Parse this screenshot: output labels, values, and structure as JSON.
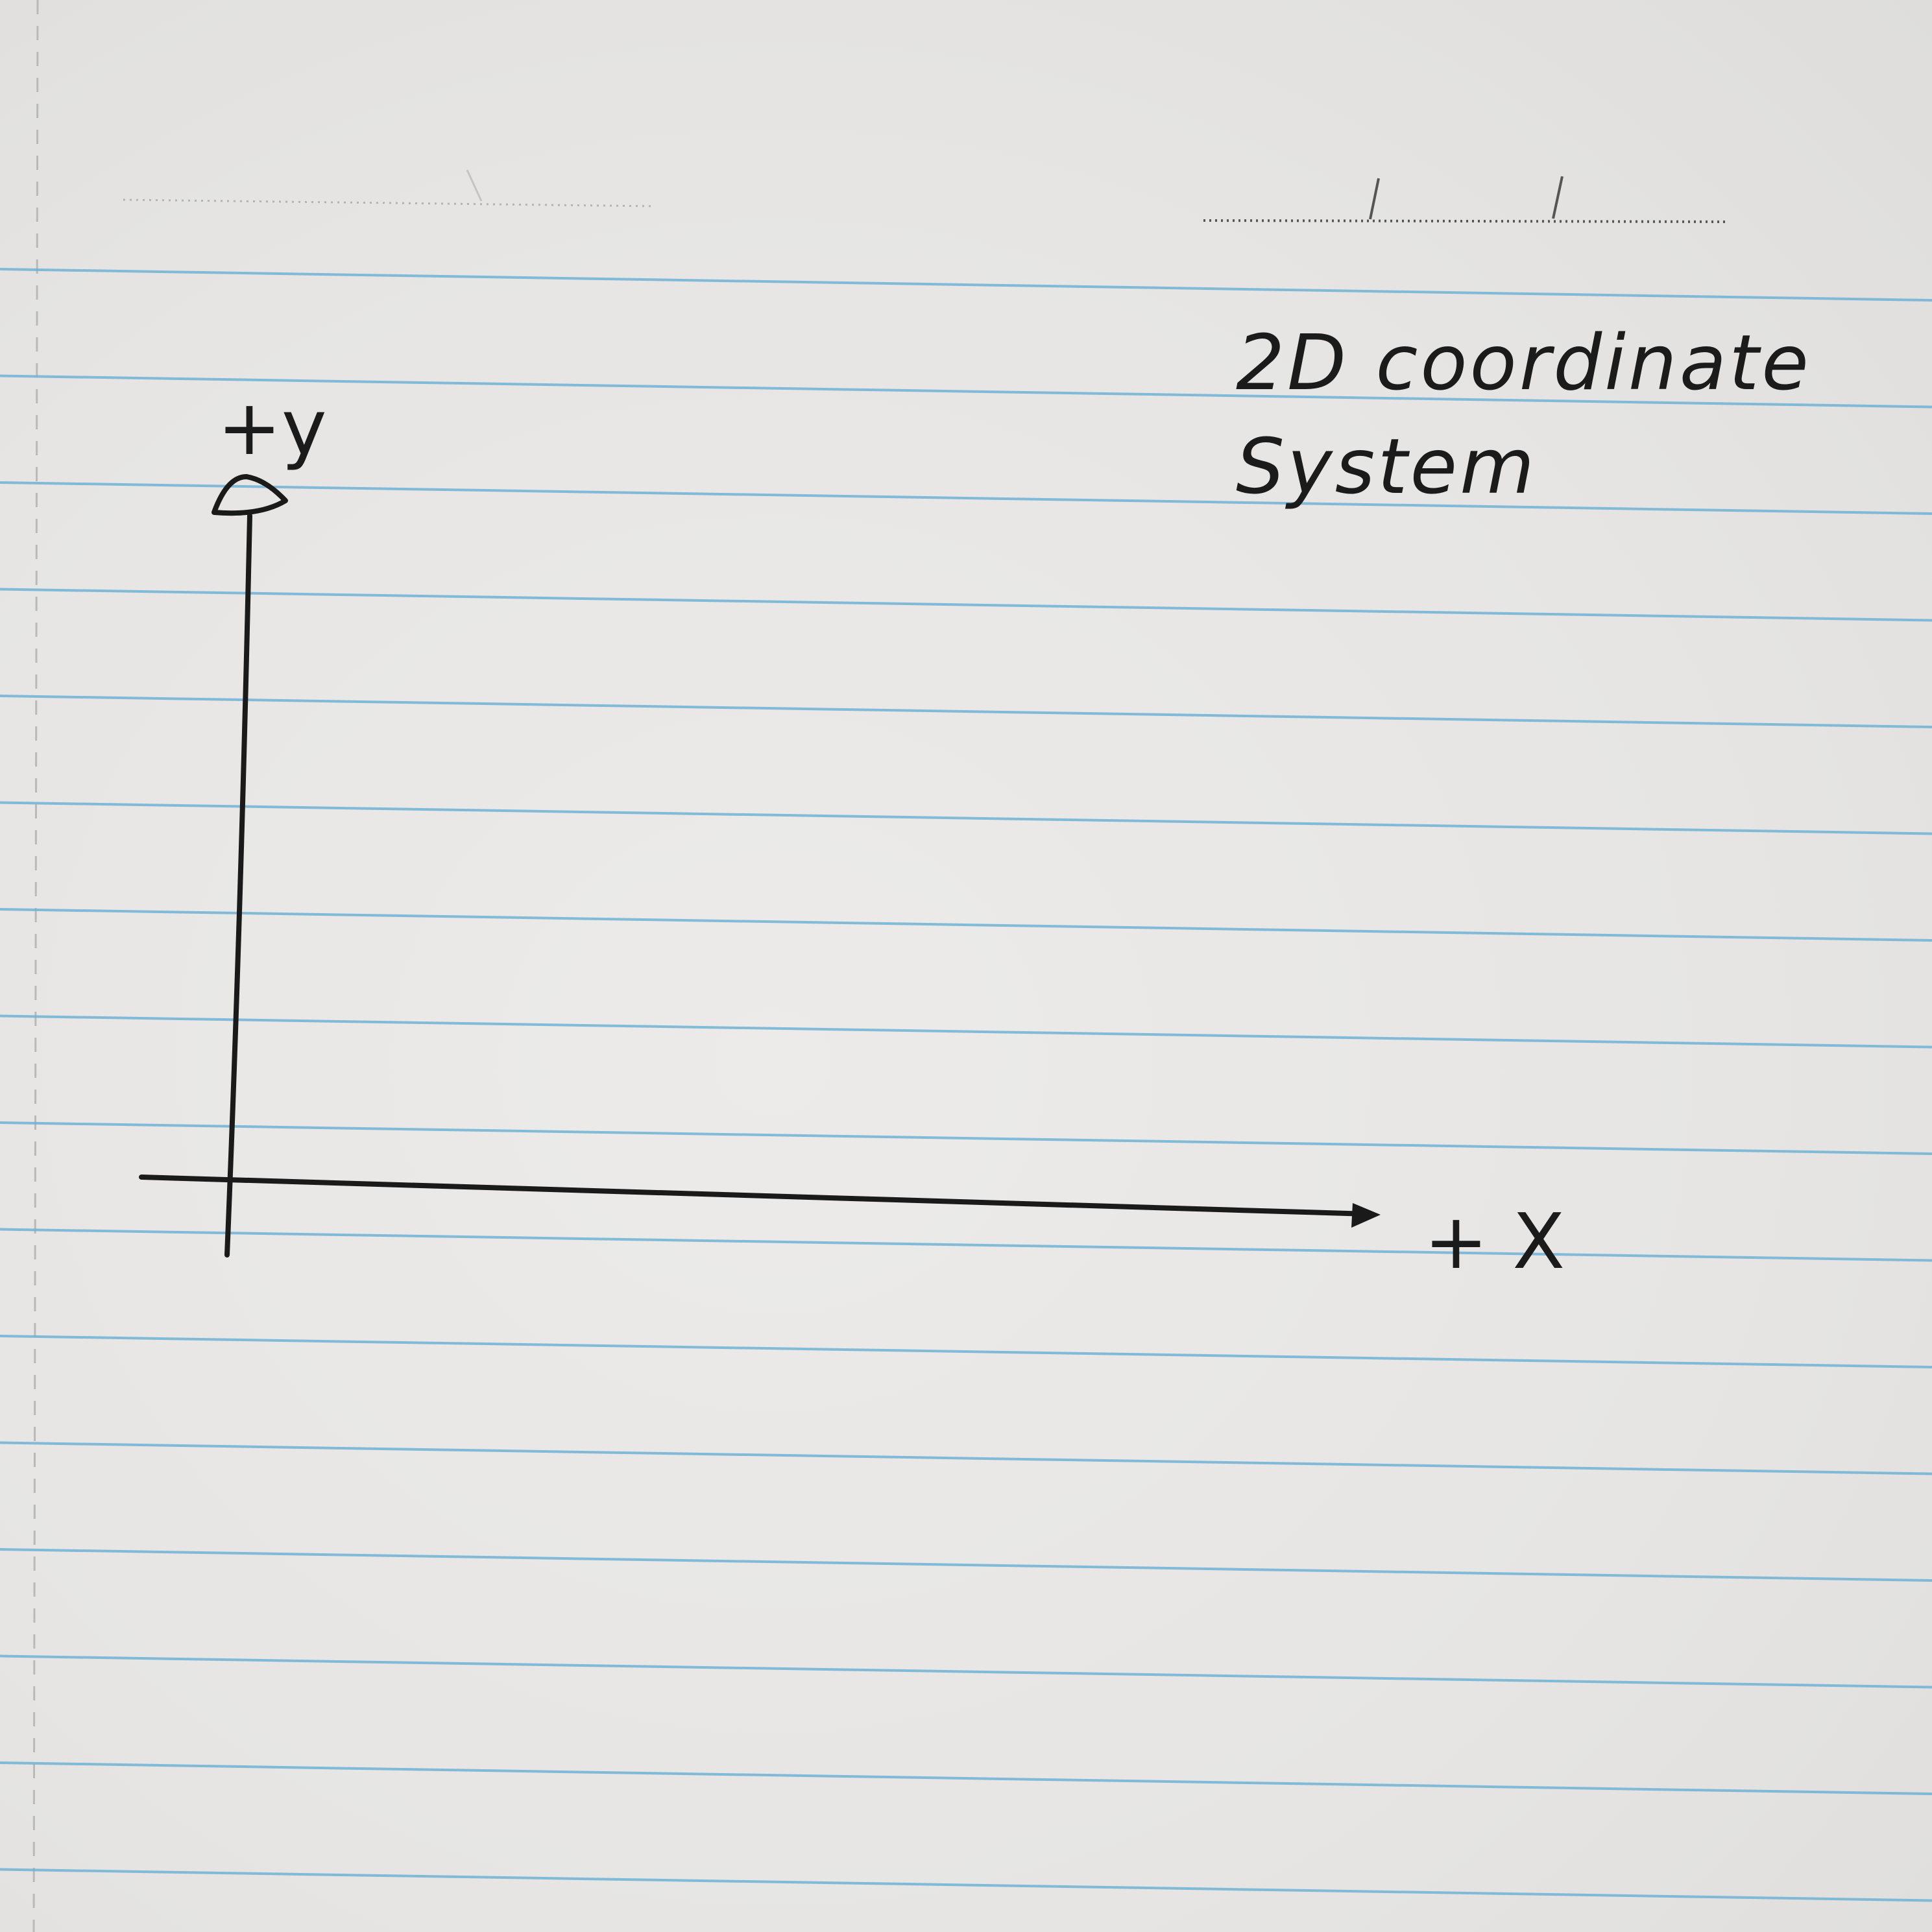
{
  "title": {
    "line1": "2D coordinate",
    "line2": "System"
  },
  "axes": {
    "y_label": "+y",
    "x_label": "+ X"
  },
  "colors": {
    "paper": "#e9e8e6",
    "rule_lines": "#6fb3d6",
    "margin_line": "#b9b9b9",
    "ink": "#1a1a1a"
  },
  "paper_style": "ruled notebook paper with blue horizontal lines and a dashed left margin"
}
